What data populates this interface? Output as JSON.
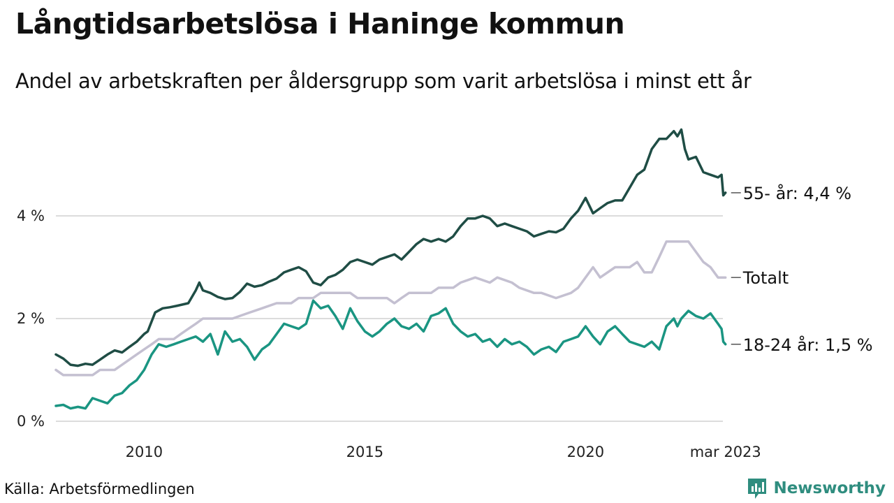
{
  "title": "Långtidsarbetslösa i Haninge kommun",
  "subtitle": "Andel av arbetskraften per åldersgrupp som varit arbetslösa i minst ett år",
  "source": "Källa: Arbetsförmedlingen",
  "brand": "Newsworthy",
  "colors": {
    "age_55_plus": "#1f4d45",
    "total": "#c4c0d1",
    "age_18_24": "#1a9582",
    "grid": "#dcdcdc",
    "brand": "#2f8d7f"
  },
  "chart_data": {
    "type": "line",
    "ylim": [
      0,
      5.8
    ],
    "xlim": [
      2008,
      2023.25
    ],
    "y_ticks": [
      {
        "value": 0,
        "label": "0 %"
      },
      {
        "value": 2,
        "label": "2 %"
      },
      {
        "value": 4,
        "label": "4 %"
      }
    ],
    "x_ticks": [
      {
        "value": 2010,
        "label": "2010"
      },
      {
        "value": 2015,
        "label": "2015"
      },
      {
        "value": 2020,
        "label": "2020"
      },
      {
        "value": 2023.17,
        "label": "mar 2023"
      }
    ],
    "grid": true,
    "series": [
      {
        "key": "age_55_plus",
        "label": "55- år: 4,4 %",
        "points": [
          [
            2008.0,
            1.3
          ],
          [
            2008.17,
            1.22
          ],
          [
            2008.33,
            1.1
          ],
          [
            2008.5,
            1.08
          ],
          [
            2008.67,
            1.12
          ],
          [
            2008.83,
            1.1
          ],
          [
            2009.0,
            1.2
          ],
          [
            2009.17,
            1.3
          ],
          [
            2009.33,
            1.38
          ],
          [
            2009.5,
            1.34
          ],
          [
            2009.67,
            1.45
          ],
          [
            2009.83,
            1.55
          ],
          [
            2010.0,
            1.7
          ],
          [
            2010.08,
            1.75
          ],
          [
            2010.25,
            2.12
          ],
          [
            2010.42,
            2.2
          ],
          [
            2010.58,
            2.22
          ],
          [
            2010.75,
            2.25
          ],
          [
            2011.0,
            2.3
          ],
          [
            2011.17,
            2.55
          ],
          [
            2011.25,
            2.7
          ],
          [
            2011.33,
            2.55
          ],
          [
            2011.5,
            2.5
          ],
          [
            2011.67,
            2.42
          ],
          [
            2011.83,
            2.38
          ],
          [
            2012.0,
            2.4
          ],
          [
            2012.17,
            2.52
          ],
          [
            2012.33,
            2.68
          ],
          [
            2012.5,
            2.62
          ],
          [
            2012.67,
            2.65
          ],
          [
            2012.83,
            2.72
          ],
          [
            2013.0,
            2.78
          ],
          [
            2013.17,
            2.9
          ],
          [
            2013.33,
            2.95
          ],
          [
            2013.5,
            3.0
          ],
          [
            2013.67,
            2.92
          ],
          [
            2013.83,
            2.7
          ],
          [
            2014.0,
            2.65
          ],
          [
            2014.17,
            2.8
          ],
          [
            2014.33,
            2.85
          ],
          [
            2014.5,
            2.95
          ],
          [
            2014.67,
            3.1
          ],
          [
            2014.83,
            3.15
          ],
          [
            2015.0,
            3.1
          ],
          [
            2015.17,
            3.05
          ],
          [
            2015.33,
            3.15
          ],
          [
            2015.5,
            3.2
          ],
          [
            2015.67,
            3.25
          ],
          [
            2015.83,
            3.15
          ],
          [
            2016.0,
            3.3
          ],
          [
            2016.17,
            3.45
          ],
          [
            2016.33,
            3.55
          ],
          [
            2016.5,
            3.5
          ],
          [
            2016.67,
            3.55
          ],
          [
            2016.83,
            3.5
          ],
          [
            2017.0,
            3.6
          ],
          [
            2017.17,
            3.8
          ],
          [
            2017.33,
            3.95
          ],
          [
            2017.5,
            3.95
          ],
          [
            2017.67,
            4.0
          ],
          [
            2017.83,
            3.95
          ],
          [
            2018.0,
            3.8
          ],
          [
            2018.17,
            3.85
          ],
          [
            2018.33,
            3.8
          ],
          [
            2018.5,
            3.75
          ],
          [
            2018.67,
            3.7
          ],
          [
            2018.83,
            3.6
          ],
          [
            2019.0,
            3.65
          ],
          [
            2019.17,
            3.7
          ],
          [
            2019.33,
            3.68
          ],
          [
            2019.5,
            3.75
          ],
          [
            2019.67,
            3.95
          ],
          [
            2019.83,
            4.1
          ],
          [
            2020.0,
            4.35
          ],
          [
            2020.17,
            4.05
          ],
          [
            2020.33,
            4.15
          ],
          [
            2020.5,
            4.25
          ],
          [
            2020.67,
            4.3
          ],
          [
            2020.83,
            4.3
          ],
          [
            2021.0,
            4.55
          ],
          [
            2021.17,
            4.8
          ],
          [
            2021.33,
            4.9
          ],
          [
            2021.5,
            5.3
          ],
          [
            2021.67,
            5.5
          ],
          [
            2021.83,
            5.5
          ],
          [
            2022.0,
            5.65
          ],
          [
            2022.08,
            5.55
          ],
          [
            2022.17,
            5.68
          ],
          [
            2022.25,
            5.3
          ],
          [
            2022.33,
            5.1
          ],
          [
            2022.5,
            5.15
          ],
          [
            2022.67,
            4.85
          ],
          [
            2022.83,
            4.8
          ],
          [
            2023.0,
            4.75
          ],
          [
            2023.08,
            4.8
          ],
          [
            2023.12,
            4.4
          ],
          [
            2023.17,
            4.45
          ]
        ]
      },
      {
        "key": "total",
        "label": "Totalt",
        "points": [
          [
            2008.0,
            1.0
          ],
          [
            2008.17,
            0.9
          ],
          [
            2008.5,
            0.9
          ],
          [
            2008.83,
            0.9
          ],
          [
            2009.0,
            1.0
          ],
          [
            2009.33,
            1.0
          ],
          [
            2009.5,
            1.1
          ],
          [
            2009.83,
            1.3
          ],
          [
            2010.0,
            1.4
          ],
          [
            2010.17,
            1.5
          ],
          [
            2010.33,
            1.6
          ],
          [
            2010.67,
            1.6
          ],
          [
            2010.83,
            1.7
          ],
          [
            2011.0,
            1.8
          ],
          [
            2011.17,
            1.9
          ],
          [
            2011.33,
            2.0
          ],
          [
            2011.67,
            2.0
          ],
          [
            2012.0,
            2.0
          ],
          [
            2012.33,
            2.1
          ],
          [
            2012.67,
            2.2
          ],
          [
            2013.0,
            2.3
          ],
          [
            2013.33,
            2.3
          ],
          [
            2013.5,
            2.4
          ],
          [
            2013.83,
            2.4
          ],
          [
            2014.0,
            2.5
          ],
          [
            2014.67,
            2.5
          ],
          [
            2014.83,
            2.4
          ],
          [
            2015.5,
            2.4
          ],
          [
            2015.67,
            2.3
          ],
          [
            2015.83,
            2.4
          ],
          [
            2016.0,
            2.5
          ],
          [
            2016.5,
            2.5
          ],
          [
            2016.67,
            2.6
          ],
          [
            2017.0,
            2.6
          ],
          [
            2017.17,
            2.7
          ],
          [
            2017.5,
            2.8
          ],
          [
            2017.83,
            2.7
          ],
          [
            2018.0,
            2.8
          ],
          [
            2018.33,
            2.7
          ],
          [
            2018.5,
            2.6
          ],
          [
            2018.83,
            2.5
          ],
          [
            2019.0,
            2.5
          ],
          [
            2019.33,
            2.4
          ],
          [
            2019.67,
            2.5
          ],
          [
            2019.83,
            2.6
          ],
          [
            2020.0,
            2.8
          ],
          [
            2020.17,
            3.0
          ],
          [
            2020.33,
            2.8
          ],
          [
            2020.67,
            3.0
          ],
          [
            2021.0,
            3.0
          ],
          [
            2021.17,
            3.1
          ],
          [
            2021.33,
            2.9
          ],
          [
            2021.5,
            2.9
          ],
          [
            2021.67,
            3.2
          ],
          [
            2021.83,
            3.5
          ],
          [
            2022.0,
            3.5
          ],
          [
            2022.33,
            3.5
          ],
          [
            2022.5,
            3.3
          ],
          [
            2022.67,
            3.1
          ],
          [
            2022.83,
            3.0
          ],
          [
            2023.0,
            2.8
          ],
          [
            2023.17,
            2.8
          ]
        ]
      },
      {
        "key": "age_18_24",
        "label": "18-24 år: 1,5 %",
        "points": [
          [
            2008.0,
            0.3
          ],
          [
            2008.17,
            0.32
          ],
          [
            2008.33,
            0.25
          ],
          [
            2008.5,
            0.28
          ],
          [
            2008.67,
            0.25
          ],
          [
            2008.83,
            0.45
          ],
          [
            2009.0,
            0.4
          ],
          [
            2009.17,
            0.35
          ],
          [
            2009.33,
            0.5
          ],
          [
            2009.5,
            0.55
          ],
          [
            2009.67,
            0.7
          ],
          [
            2009.83,
            0.8
          ],
          [
            2010.0,
            1.0
          ],
          [
            2010.17,
            1.3
          ],
          [
            2010.33,
            1.5
          ],
          [
            2010.5,
            1.45
          ],
          [
            2010.67,
            1.5
          ],
          [
            2010.83,
            1.55
          ],
          [
            2011.0,
            1.6
          ],
          [
            2011.17,
            1.65
          ],
          [
            2011.33,
            1.55
          ],
          [
            2011.5,
            1.7
          ],
          [
            2011.67,
            1.3
          ],
          [
            2011.83,
            1.75
          ],
          [
            2012.0,
            1.55
          ],
          [
            2012.17,
            1.6
          ],
          [
            2012.33,
            1.45
          ],
          [
            2012.5,
            1.2
          ],
          [
            2012.67,
            1.4
          ],
          [
            2012.83,
            1.5
          ],
          [
            2013.0,
            1.7
          ],
          [
            2013.17,
            1.9
          ],
          [
            2013.33,
            1.85
          ],
          [
            2013.5,
            1.8
          ],
          [
            2013.67,
            1.9
          ],
          [
            2013.83,
            2.35
          ],
          [
            2014.0,
            2.2
          ],
          [
            2014.17,
            2.25
          ],
          [
            2014.33,
            2.05
          ],
          [
            2014.5,
            1.8
          ],
          [
            2014.67,
            2.2
          ],
          [
            2014.83,
            1.95
          ],
          [
            2015.0,
            1.75
          ],
          [
            2015.17,
            1.65
          ],
          [
            2015.33,
            1.75
          ],
          [
            2015.5,
            1.9
          ],
          [
            2015.67,
            2.0
          ],
          [
            2015.83,
            1.85
          ],
          [
            2016.0,
            1.8
          ],
          [
            2016.17,
            1.9
          ],
          [
            2016.33,
            1.75
          ],
          [
            2016.5,
            2.05
          ],
          [
            2016.67,
            2.1
          ],
          [
            2016.83,
            2.2
          ],
          [
            2017.0,
            1.9
          ],
          [
            2017.17,
            1.75
          ],
          [
            2017.33,
            1.65
          ],
          [
            2017.5,
            1.7
          ],
          [
            2017.67,
            1.55
          ],
          [
            2017.83,
            1.6
          ],
          [
            2018.0,
            1.45
          ],
          [
            2018.17,
            1.6
          ],
          [
            2018.33,
            1.5
          ],
          [
            2018.5,
            1.55
          ],
          [
            2018.67,
            1.45
          ],
          [
            2018.83,
            1.3
          ],
          [
            2019.0,
            1.4
          ],
          [
            2019.17,
            1.45
          ],
          [
            2019.33,
            1.35
          ],
          [
            2019.5,
            1.55
          ],
          [
            2019.67,
            1.6
          ],
          [
            2019.83,
            1.65
          ],
          [
            2020.0,
            1.85
          ],
          [
            2020.17,
            1.65
          ],
          [
            2020.33,
            1.5
          ],
          [
            2020.5,
            1.75
          ],
          [
            2020.67,
            1.85
          ],
          [
            2020.83,
            1.7
          ],
          [
            2021.0,
            1.55
          ],
          [
            2021.17,
            1.5
          ],
          [
            2021.33,
            1.45
          ],
          [
            2021.5,
            1.55
          ],
          [
            2021.67,
            1.4
          ],
          [
            2021.83,
            1.85
          ],
          [
            2022.0,
            2.0
          ],
          [
            2022.08,
            1.85
          ],
          [
            2022.17,
            2.0
          ],
          [
            2022.33,
            2.15
          ],
          [
            2022.5,
            2.05
          ],
          [
            2022.67,
            2.0
          ],
          [
            2022.83,
            2.1
          ],
          [
            2023.0,
            1.9
          ],
          [
            2023.08,
            1.8
          ],
          [
            2023.12,
            1.55
          ],
          [
            2023.17,
            1.5
          ]
        ]
      }
    ]
  }
}
